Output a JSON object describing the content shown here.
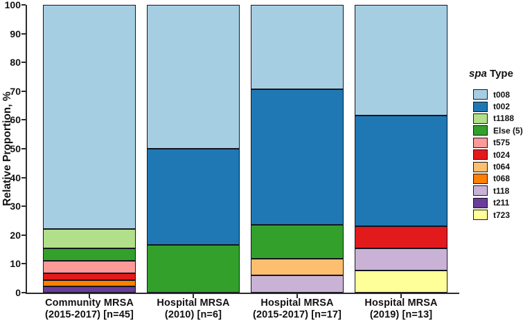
{
  "figure": {
    "background": "#ffffff",
    "axis_color": "#2a2a2a",
    "text_color": "#111111",
    "segment_outline": "#15151f"
  },
  "legend": {
    "title_italic": "spa",
    "title_rest": " Type"
  },
  "chart_data": {
    "type": "bar",
    "variant": "stacked-100-percent",
    "title": "",
    "xlabel": "",
    "ylabel": "Relative Proportion, %",
    "ylim": [
      0,
      100
    ],
    "yticks": [
      0,
      10,
      20,
      30,
      40,
      50,
      60,
      70,
      80,
      90,
      100
    ],
    "grid": false,
    "legend_position": "right",
    "legend_title": "spa Type",
    "categories": [
      {
        "line1": "Community MRSA",
        "line2": "(2015-2017) [n=45]"
      },
      {
        "line1": "Hospital MRSA",
        "line2": "(2010) [n=6]"
      },
      {
        "line1": "Hospital MRSA",
        "line2": "(2015-2017) [n=17]"
      },
      {
        "line1": "Hospital MRSA",
        "line2": "(2019) [n=13]"
      }
    ],
    "stack_order": "first-series-at-top",
    "series": [
      {
        "name": "t008",
        "color": "#a6cee3",
        "values": [
          77.8,
          50.0,
          29.4,
          38.5
        ]
      },
      {
        "name": "t002",
        "color": "#1f78b4",
        "values": [
          0,
          33.3,
          47.1,
          38.5
        ]
      },
      {
        "name": "t1188",
        "color": "#b2df8a",
        "values": [
          6.7,
          0,
          0,
          0
        ]
      },
      {
        "name": "Else (5)",
        "color": "#33a02c",
        "values": [
          4.4,
          16.7,
          11.8,
          0
        ]
      },
      {
        "name": "t575",
        "color": "#fb9a99",
        "values": [
          4.4,
          0,
          0,
          0
        ]
      },
      {
        "name": "t024",
        "color": "#e31a1c",
        "values": [
          2.2,
          0,
          0,
          7.7
        ]
      },
      {
        "name": "t064",
        "color": "#fdbf6f",
        "values": [
          0,
          0,
          5.9,
          0
        ]
      },
      {
        "name": "t068",
        "color": "#ff7f00",
        "values": [
          2.2,
          0,
          0,
          0
        ]
      },
      {
        "name": "t118",
        "color": "#cab2d6",
        "values": [
          0,
          0,
          5.9,
          7.7
        ]
      },
      {
        "name": "t211",
        "color": "#6a3d9a",
        "values": [
          2.2,
          0,
          0,
          0
        ]
      },
      {
        "name": "t723",
        "color": "#ffff99",
        "values": [
          0,
          0,
          0,
          7.7
        ]
      }
    ]
  }
}
